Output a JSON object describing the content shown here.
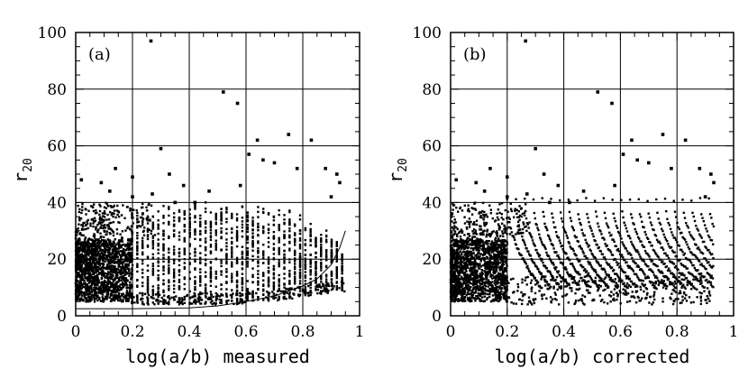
{
  "chart_data": [
    {
      "type": "scatter",
      "panel_label": "(a)",
      "xlabel": "log(a/b) measured",
      "ylabel": "r",
      "ylabel_sub": "20",
      "xlim": [
        0,
        1
      ],
      "ylim": [
        0,
        100
      ],
      "xticks": [
        0,
        0.2,
        0.4,
        0.6,
        0.8,
        1
      ],
      "yticks": [
        0,
        20,
        40,
        60,
        80,
        100
      ],
      "xtick_labels": [
        "0",
        "0.2",
        "0.4",
        "0.6",
        "0.8",
        "1"
      ],
      "ytick_labels": [
        "0",
        "20",
        "40",
        "60",
        "80",
        "100"
      ],
      "grid": true,
      "points": [
        [
          0.265,
          97
        ],
        [
          0.52,
          79
        ],
        [
          0.57,
          75
        ],
        [
          0.3,
          59
        ],
        [
          0.64,
          62
        ],
        [
          0.75,
          64
        ],
        [
          0.83,
          62
        ],
        [
          0.14,
          52
        ],
        [
          0.02,
          48
        ],
        [
          0.09,
          47
        ],
        [
          0.2,
          49
        ],
        [
          0.33,
          50
        ],
        [
          0.38,
          46
        ],
        [
          0.47,
          44
        ],
        [
          0.58,
          46
        ],
        [
          0.61,
          57
        ],
        [
          0.66,
          55
        ],
        [
          0.7,
          54
        ],
        [
          0.78,
          52
        ],
        [
          0.88,
          52
        ],
        [
          0.92,
          50
        ],
        [
          0.93,
          47
        ],
        [
          0.2,
          42
        ],
        [
          0.42,
          40
        ],
        [
          0.9,
          42
        ],
        [
          0.12,
          44
        ],
        [
          0.27,
          43
        ],
        [
          0.35,
          40
        ]
      ],
      "curve": [
        [
          0,
          2.5
        ],
        [
          0.2,
          2.5
        ],
        [
          0.4,
          2.8
        ],
        [
          0.5,
          3.5
        ],
        [
          0.6,
          5
        ],
        [
          0.7,
          7
        ],
        [
          0.8,
          10.5
        ],
        [
          0.85,
          13
        ],
        [
          0.9,
          18
        ],
        [
          0.93,
          24
        ],
        [
          0.95,
          30
        ]
      ]
    },
    {
      "type": "scatter",
      "panel_label": "(b)",
      "xlabel": "log(a/b) corrected",
      "ylabel": "r",
      "ylabel_sub": "20",
      "xlim": [
        0,
        1
      ],
      "ylim": [
        0,
        100
      ],
      "xticks": [
        0,
        0.2,
        0.4,
        0.6,
        0.8,
        1
      ],
      "yticks": [
        0,
        20,
        40,
        60,
        80,
        100
      ],
      "xtick_labels": [
        "0",
        "0.2",
        "0.4",
        "0.6",
        "0.8",
        "1"
      ],
      "ytick_labels": [
        "0",
        "20",
        "40",
        "60",
        "80",
        "100"
      ],
      "grid": true,
      "points": [
        [
          0.265,
          97
        ],
        [
          0.52,
          79
        ],
        [
          0.57,
          75
        ],
        [
          0.3,
          59
        ],
        [
          0.64,
          62
        ],
        [
          0.75,
          64
        ],
        [
          0.83,
          62
        ],
        [
          0.14,
          52
        ],
        [
          0.02,
          48
        ],
        [
          0.09,
          47
        ],
        [
          0.2,
          49
        ],
        [
          0.33,
          50
        ],
        [
          0.38,
          46
        ],
        [
          0.47,
          44
        ],
        [
          0.58,
          46
        ],
        [
          0.61,
          57
        ],
        [
          0.66,
          55
        ],
        [
          0.7,
          54
        ],
        [
          0.78,
          52
        ],
        [
          0.88,
          52
        ],
        [
          0.92,
          50
        ],
        [
          0.93,
          47
        ],
        [
          0.2,
          42
        ],
        [
          0.42,
          40
        ],
        [
          0.9,
          42
        ],
        [
          0.12,
          44
        ],
        [
          0.27,
          43
        ],
        [
          0.35,
          40
        ]
      ]
    }
  ]
}
